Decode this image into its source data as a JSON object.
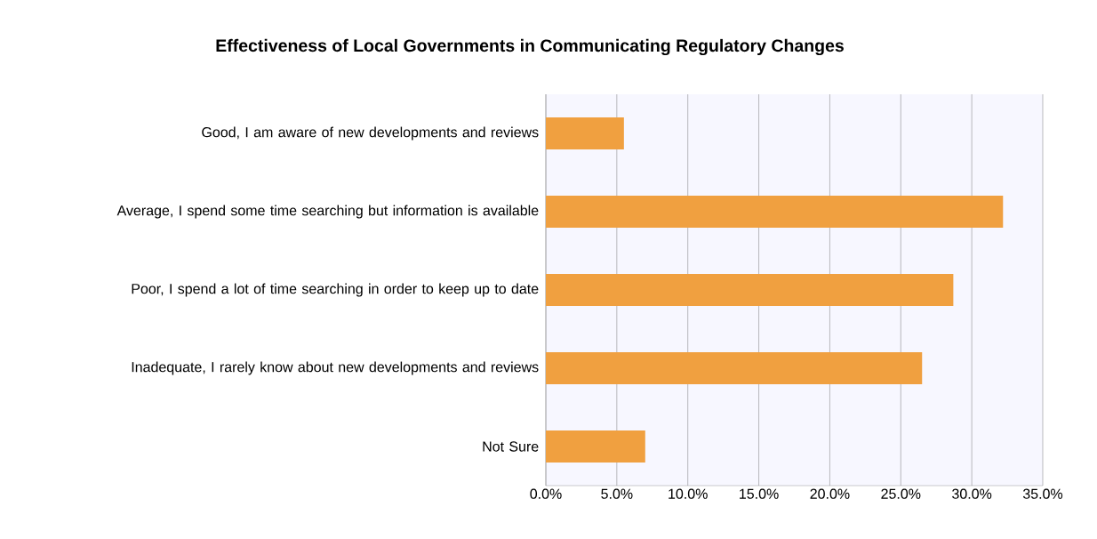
{
  "chart_data": {
    "type": "bar",
    "orientation": "horizontal",
    "title": "Effectiveness of Local Governments in Communicating Regulatory Changes",
    "categories": [
      "Good, I am aware of new developments and reviews",
      "Average, I spend some time searching but information is available",
      "Poor, I spend a lot of time searching in order to keep up to date",
      "Inadequate, I rarely know about new developments and reviews",
      "Not Sure"
    ],
    "values": [
      5.5,
      32.2,
      28.7,
      26.5,
      7.0
    ],
    "color": "#f0a040",
    "xlim": [
      0,
      35
    ],
    "xticks": [
      {
        "value": 0,
        "label": "0.0%"
      },
      {
        "value": 5,
        "label": "5.0%"
      },
      {
        "value": 10,
        "label": "10.0%"
      },
      {
        "value": 15,
        "label": "15.0%"
      },
      {
        "value": 20,
        "label": "20.0%"
      },
      {
        "value": 25,
        "label": "25.0%"
      },
      {
        "value": 30,
        "label": "30.0%"
      },
      {
        "value": 35,
        "label": "35.0%"
      }
    ],
    "grid": "x"
  }
}
